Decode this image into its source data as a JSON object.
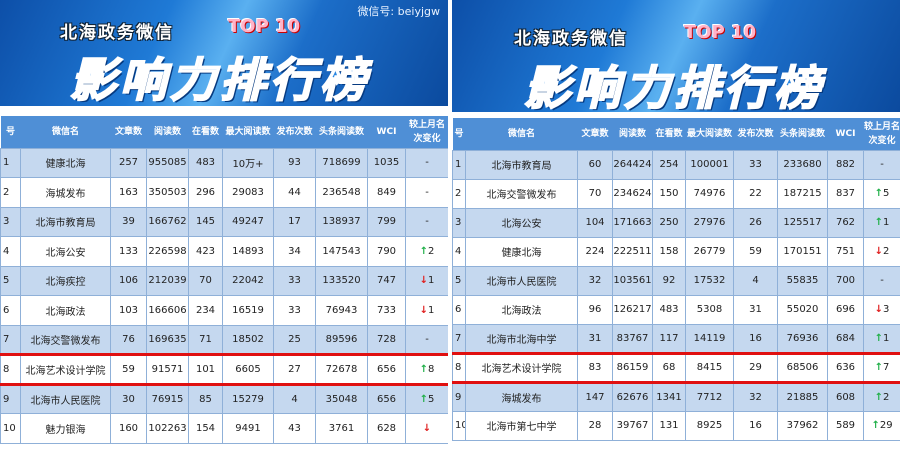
{
  "left": {
    "banner": {
      "subtitle": "北海政务微信",
      "badge": "TOP 10",
      "title": "影响力排行榜"
    },
    "headers": [
      "号",
      "微信名",
      "文章数",
      "阅读数",
      "在看数",
      "最大阅读数",
      "发布次数",
      "头条阅读数",
      "WCI",
      "较上月名次变化"
    ],
    "rows": [
      {
        "rank": "1",
        "name": "健康北海",
        "articles": "257",
        "reads": "955085",
        "likes": "483",
        "max_reads": "10万+",
        "posts": "93",
        "headline_reads": "718699",
        "wci": "1035",
        "change": "-",
        "dir": "none"
      },
      {
        "rank": "2",
        "name": "海城发布",
        "articles": "163",
        "reads": "350503",
        "likes": "296",
        "max_reads": "29083",
        "posts": "44",
        "headline_reads": "236548",
        "wci": "849",
        "change": "-",
        "dir": "none"
      },
      {
        "rank": "3",
        "name": "北海市教育局",
        "articles": "39",
        "reads": "166762",
        "likes": "145",
        "max_reads": "49247",
        "posts": "17",
        "headline_reads": "138937",
        "wci": "799",
        "change": "-",
        "dir": "none"
      },
      {
        "rank": "4",
        "name": "北海公安",
        "articles": "133",
        "reads": "226598",
        "likes": "423",
        "max_reads": "14893",
        "posts": "34",
        "headline_reads": "147543",
        "wci": "790",
        "change": "2",
        "dir": "up"
      },
      {
        "rank": "5",
        "name": "北海疾控",
        "articles": "106",
        "reads": "212039",
        "likes": "70",
        "max_reads": "22042",
        "posts": "33",
        "headline_reads": "133520",
        "wci": "747",
        "change": "1",
        "dir": "down"
      },
      {
        "rank": "6",
        "name": "北海政法",
        "articles": "103",
        "reads": "166606",
        "likes": "234",
        "max_reads": "16519",
        "posts": "33",
        "headline_reads": "76943",
        "wci": "733",
        "change": "1",
        "dir": "down"
      },
      {
        "rank": "7",
        "name": "北海交警微发布",
        "articles": "76",
        "reads": "169635",
        "likes": "71",
        "max_reads": "18502",
        "posts": "25",
        "headline_reads": "89596",
        "wci": "728",
        "change": "-",
        "dir": "none"
      },
      {
        "rank": "8",
        "name": "北海艺术设计学院",
        "articles": "59",
        "reads": "91571",
        "likes": "101",
        "max_reads": "6605",
        "posts": "27",
        "headline_reads": "72678",
        "wci": "656",
        "change": "8",
        "dir": "up",
        "highlight": true
      },
      {
        "rank": "9",
        "name": "北海市人民医院",
        "articles": "30",
        "reads": "76915",
        "likes": "85",
        "max_reads": "15279",
        "posts": "4",
        "headline_reads": "35048",
        "wci": "656",
        "change": "5",
        "dir": "up"
      },
      {
        "rank": "10",
        "name": "魅力银海",
        "articles": "160",
        "reads": "102263",
        "likes": "154",
        "max_reads": "9491",
        "posts": "43",
        "headline_reads": "3761",
        "wci": "628",
        "change": "",
        "dir": "down"
      }
    ],
    "watermark": "微信号: beiyjgw"
  },
  "right": {
    "banner": {
      "subtitle": "北海政务微信",
      "badge": "TOP 10",
      "title": "影响力排行榜"
    },
    "headers": [
      "号",
      "微信名",
      "文章数",
      "阅读数",
      "在看数",
      "最大阅读数",
      "发布次数",
      "头条阅读数",
      "WCI",
      "较上月名次变化"
    ],
    "rows": [
      {
        "rank": "1",
        "name": "北海市教育局",
        "articles": "60",
        "reads": "264424",
        "likes": "254",
        "max_reads": "100001",
        "posts": "33",
        "headline_reads": "233680",
        "wci": "882",
        "change": "-",
        "dir": "none"
      },
      {
        "rank": "2",
        "name": "北海交警微发布",
        "articles": "70",
        "reads": "234624",
        "likes": "150",
        "max_reads": "74976",
        "posts": "22",
        "headline_reads": "187215",
        "wci": "837",
        "change": "5",
        "dir": "up"
      },
      {
        "rank": "3",
        "name": "北海公安",
        "articles": "104",
        "reads": "171663",
        "likes": "250",
        "max_reads": "27976",
        "posts": "26",
        "headline_reads": "125517",
        "wci": "762",
        "change": "1",
        "dir": "up"
      },
      {
        "rank": "4",
        "name": "健康北海",
        "articles": "224",
        "reads": "222511",
        "likes": "158",
        "max_reads": "26779",
        "posts": "59",
        "headline_reads": "170151",
        "wci": "751",
        "change": "2",
        "dir": "down"
      },
      {
        "rank": "5",
        "name": "北海市人民医院",
        "articles": "32",
        "reads": "103561",
        "likes": "92",
        "max_reads": "17532",
        "posts": "4",
        "headline_reads": "55835",
        "wci": "700",
        "change": "-",
        "dir": "none"
      },
      {
        "rank": "6",
        "name": "北海政法",
        "articles": "96",
        "reads": "126217",
        "likes": "483",
        "max_reads": "5308",
        "posts": "31",
        "headline_reads": "55020",
        "wci": "696",
        "change": "3",
        "dir": "down"
      },
      {
        "rank": "7",
        "name": "北海市北海中学",
        "articles": "31",
        "reads": "83767",
        "likes": "117",
        "max_reads": "14119",
        "posts": "16",
        "headline_reads": "76936",
        "wci": "684",
        "change": "1",
        "dir": "up"
      },
      {
        "rank": "8",
        "name": "北海艺术设计学院",
        "articles": "83",
        "reads": "86159",
        "likes": "68",
        "max_reads": "8415",
        "posts": "29",
        "headline_reads": "68506",
        "wci": "636",
        "change": "7",
        "dir": "up",
        "highlight": true
      },
      {
        "rank": "9",
        "name": "海城发布",
        "articles": "147",
        "reads": "62676",
        "likes": "1341",
        "max_reads": "7712",
        "posts": "32",
        "headline_reads": "21885",
        "wci": "608",
        "change": "2",
        "dir": "up"
      },
      {
        "rank": "10",
        "name": "北海市第七中学",
        "articles": "28",
        "reads": "39767",
        "likes": "131",
        "max_reads": "8925",
        "posts": "16",
        "headline_reads": "37962",
        "wci": "589",
        "change": "29",
        "dir": "up"
      }
    ]
  },
  "colors": {
    "header": "#4f8fd6",
    "alt_row": "#c5d8ef",
    "highlight_line": "#e01010",
    "up": "#22b04a",
    "down": "#e02020"
  }
}
